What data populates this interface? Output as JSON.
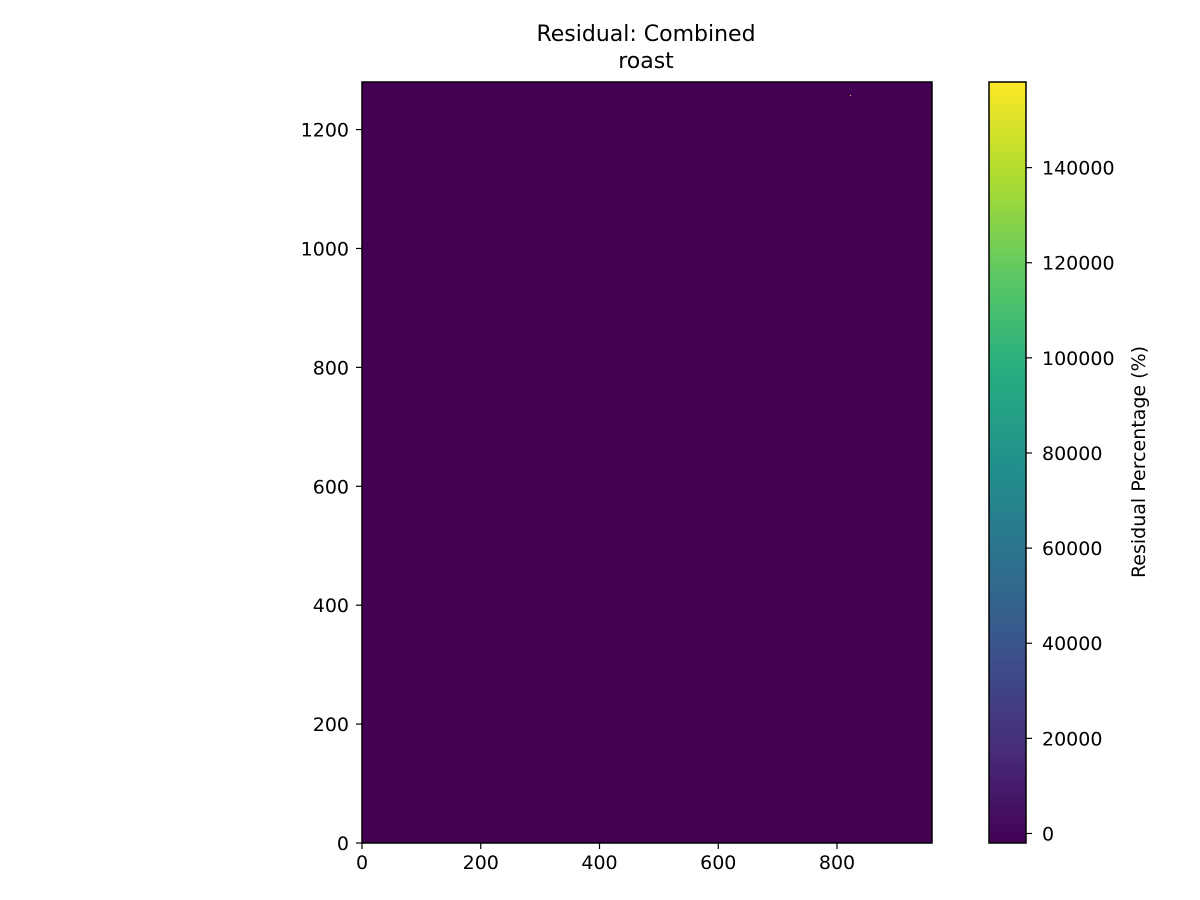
{
  "chart_data": {
    "type": "heatmap",
    "title": "Residual: Combined\nroast",
    "title_lines": [
      "Residual: Combined",
      "roast"
    ],
    "xlabel": "",
    "ylabel": "",
    "xlim": [
      0,
      960
    ],
    "ylim": [
      0,
      1280
    ],
    "x_ticks": [
      0,
      200,
      400,
      600,
      800
    ],
    "y_ticks": [
      0,
      200,
      400,
      600,
      800,
      1000,
      1200
    ],
    "grid": false,
    "colormap": "viridis",
    "values_description": "near-uniform field at ~0",
    "field_value": 0,
    "hotspot": {
      "x": 822,
      "y": 1258,
      "value": 158000
    },
    "colorbar": {
      "label": "Residual Percentage (%)",
      "vmin": -2000,
      "vmax": 158000,
      "ticks": [
        0,
        20000,
        40000,
        60000,
        80000,
        100000,
        120000,
        140000
      ]
    }
  }
}
